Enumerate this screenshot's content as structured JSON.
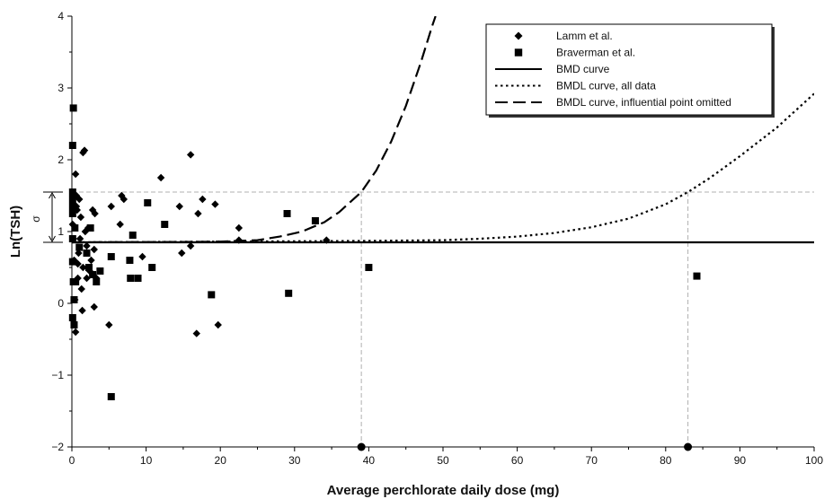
{
  "chart_data": {
    "type": "scatter",
    "xlabel": "Average perchlorate daily dose (mg)",
    "ylabel": "Ln(TSH)",
    "xlim": [
      0,
      100
    ],
    "ylim": [
      -2,
      4
    ],
    "xticks": [
      0,
      10,
      20,
      30,
      40,
      50,
      60,
      70,
      80,
      90,
      100
    ],
    "yticks": [
      -2,
      -1,
      0,
      1,
      2,
      3,
      4
    ],
    "grid": false,
    "legend_position": "top-right",
    "series": [
      {
        "name": "Lamm et al.",
        "kind": "scatter",
        "marker": "diamond",
        "points": [
          [
            0.1,
            1.1
          ],
          [
            0.2,
            0.9
          ],
          [
            0.3,
            0.6
          ],
          [
            0.4,
            0.05
          ],
          [
            0.5,
            -0.4
          ],
          [
            0.5,
            1.8
          ],
          [
            0.6,
            1.35
          ],
          [
            0.6,
            1.5
          ],
          [
            0.7,
            1.3
          ],
          [
            0.8,
            0.35
          ],
          [
            0.8,
            0.55
          ],
          [
            0.9,
            0.7
          ],
          [
            1.0,
            1.45
          ],
          [
            1.1,
            0.9
          ],
          [
            1.2,
            1.2
          ],
          [
            1.3,
            0.2
          ],
          [
            1.4,
            -0.1
          ],
          [
            1.5,
            0.5
          ],
          [
            1.5,
            2.1
          ],
          [
            1.7,
            2.13
          ],
          [
            1.8,
            1.0
          ],
          [
            2.0,
            0.35
          ],
          [
            2.0,
            0.8
          ],
          [
            2.2,
            1.05
          ],
          [
            2.4,
            0.45
          ],
          [
            2.6,
            0.6
          ],
          [
            2.8,
            1.3
          ],
          [
            3.0,
            -0.05
          ],
          [
            3.0,
            0.75
          ],
          [
            3.1,
            1.25
          ],
          [
            3.3,
            0.35
          ],
          [
            5.0,
            -0.3
          ],
          [
            5.3,
            1.35
          ],
          [
            6.5,
            1.1
          ],
          [
            6.7,
            1.5
          ],
          [
            7.0,
            1.45
          ],
          [
            9.5,
            0.65
          ],
          [
            12.0,
            1.75
          ],
          [
            14.5,
            1.35
          ],
          [
            14.8,
            0.7
          ],
          [
            16.0,
            2.07
          ],
          [
            16.0,
            0.8
          ],
          [
            16.8,
            -0.42
          ],
          [
            17.0,
            1.25
          ],
          [
            17.6,
            1.45
          ],
          [
            19.3,
            1.38
          ],
          [
            19.7,
            -0.3
          ],
          [
            22.5,
            1.05
          ],
          [
            22.5,
            0.88
          ],
          [
            34.3,
            0.88
          ]
        ]
      },
      {
        "name": "Braverman et al.",
        "kind": "scatter",
        "marker": "square",
        "points": [
          [
            0.1,
            2.2
          ],
          [
            0.1,
            1.55
          ],
          [
            0.1,
            1.45
          ],
          [
            0.1,
            1.35
          ],
          [
            0.1,
            1.25
          ],
          [
            0.1,
            0.9
          ],
          [
            0.1,
            0.58
          ],
          [
            0.1,
            -0.2
          ],
          [
            0.2,
            2.72
          ],
          [
            0.2,
            0.3
          ],
          [
            0.3,
            0.05
          ],
          [
            0.3,
            -0.3
          ],
          [
            0.4,
            1.05
          ],
          [
            0.5,
            0.3
          ],
          [
            1.0,
            0.78
          ],
          [
            2.0,
            0.7
          ],
          [
            2.3,
            0.5
          ],
          [
            2.5,
            1.05
          ],
          [
            2.8,
            0.4
          ],
          [
            3.3,
            0.3
          ],
          [
            3.8,
            0.45
          ],
          [
            5.3,
            0.65
          ],
          [
            5.3,
            -1.3
          ],
          [
            7.8,
            0.6
          ],
          [
            7.9,
            0.35
          ],
          [
            8.2,
            0.95
          ],
          [
            8.9,
            0.35
          ],
          [
            10.2,
            1.4
          ],
          [
            10.8,
            0.5
          ],
          [
            12.5,
            1.1
          ],
          [
            18.8,
            0.12
          ],
          [
            29.0,
            1.25
          ],
          [
            29.2,
            0.14
          ],
          [
            32.8,
            1.15
          ],
          [
            40.0,
            0.5
          ],
          [
            84.2,
            0.38
          ]
        ]
      },
      {
        "name": "BMD curve",
        "kind": "line",
        "dash": "solid",
        "points": [
          [
            0,
            0.85
          ],
          [
            100,
            0.85
          ]
        ]
      },
      {
        "name": "BMDL curve, all data",
        "kind": "line",
        "dash": "dotted",
        "points": [
          [
            0,
            0.85
          ],
          [
            20,
            0.86
          ],
          [
            30,
            0.865
          ],
          [
            40,
            0.87
          ],
          [
            50,
            0.88
          ],
          [
            55,
            0.9
          ],
          [
            60,
            0.93
          ],
          [
            65,
            0.98
          ],
          [
            70,
            1.06
          ],
          [
            75,
            1.18
          ],
          [
            80,
            1.38
          ],
          [
            83,
            1.55
          ],
          [
            86,
            1.75
          ],
          [
            90,
            2.05
          ],
          [
            95,
            2.45
          ],
          [
            100,
            2.92
          ]
        ]
      },
      {
        "name": "BMDL curve, influential point omitted",
        "kind": "line",
        "dash": "dashed",
        "points": [
          [
            0,
            0.85
          ],
          [
            15,
            0.855
          ],
          [
            20,
            0.86
          ],
          [
            25,
            0.88
          ],
          [
            28,
            0.93
          ],
          [
            31,
            1.0
          ],
          [
            34,
            1.13
          ],
          [
            36,
            1.27
          ],
          [
            39,
            1.55
          ],
          [
            41,
            1.85
          ],
          [
            43,
            2.25
          ],
          [
            45,
            2.75
          ],
          [
            47,
            3.35
          ],
          [
            48.5,
            3.85
          ],
          [
            49,
            4.0
          ]
        ]
      }
    ],
    "reference_lines": {
      "horizontal": [
        1.55
      ],
      "vertical": [
        {
          "x": 39,
          "y_top": 1.55
        },
        {
          "x": 83,
          "y_top": 1.55
        }
      ]
    },
    "bmdl_markers": [
      [
        39,
        -2
      ],
      [
        83,
        -2
      ]
    ],
    "sigma_annotation": {
      "label": "σ",
      "y_from": 0.85,
      "y_to": 1.55
    }
  },
  "colors": {
    "marks": "#000000",
    "reference": "#b0b0b0"
  }
}
